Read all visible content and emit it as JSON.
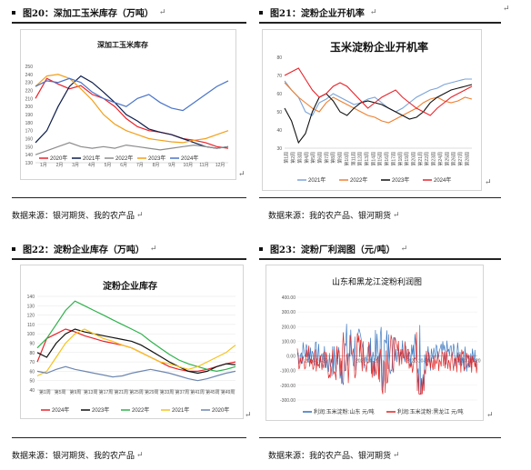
{
  "captions": {
    "fig20": "图20：深加工玉米库存（万吨）",
    "fig21": "图21：淀粉企业开机率",
    "fig22": "图22：淀粉企业库存（万吨）",
    "fig23": "图23：淀粉厂利润图（元/吨）"
  },
  "sources": {
    "left": "数据来源：银河期货、我的农产品",
    "right": "数据来源：我的农产品、银河期货"
  },
  "return_mark": "↵",
  "chart_data": [
    {
      "id": "fig20",
      "type": "line",
      "title": "深加工玉米库存",
      "ylabel_ticks": [
        "250",
        "240",
        "230",
        "220",
        "210",
        "200",
        "190",
        "180",
        "170",
        "160",
        "150",
        "140",
        "130"
      ],
      "series": [
        {
          "name": "2020年",
          "color": "#e8232a",
          "values": [
            210,
            235,
            228,
            222,
            226,
            215,
            210,
            200,
            185,
            175,
            170,
            168,
            165,
            160,
            158,
            155,
            150,
            148
          ]
        },
        {
          "name": "2021年",
          "color": "#0c1d4b",
          "values": [
            155,
            170,
            200,
            225,
            238,
            230,
            218,
            205,
            190,
            182,
            172,
            168,
            165,
            160,
            155,
            150,
            148,
            150
          ]
        },
        {
          "name": "2022年",
          "color": "#8c8c8c",
          "values": [
            140,
            145,
            150,
            155,
            150,
            148,
            150,
            148,
            152,
            150,
            148,
            146,
            148,
            150,
            152,
            150,
            148,
            150
          ]
        },
        {
          "name": "2023年",
          "color": "#f2a01a",
          "values": [
            225,
            238,
            240,
            235,
            222,
            208,
            190,
            178,
            170,
            165,
            160,
            158,
            156,
            155,
            158,
            160,
            165,
            170
          ]
        },
        {
          "name": "2024年",
          "color": "#4a74c9",
          "values": [
            225,
            232,
            230,
            235,
            230,
            218,
            210,
            205,
            200,
            210,
            215,
            205,
            198,
            195,
            205,
            215,
            225,
            232
          ]
        }
      ]
    },
    {
      "id": "fig21",
      "type": "line",
      "title": "玉米淀粉企业开机率",
      "ylim": [
        30,
        80
      ],
      "yticks": [
        "80",
        "70",
        "60",
        "50",
        "40",
        "30"
      ],
      "series": [
        {
          "name": "2021年",
          "color": "#7aa3d8",
          "values": [
            67,
            62,
            58,
            50,
            48,
            55,
            57,
            60,
            58,
            56,
            54,
            55,
            57,
            58,
            55,
            52,
            50,
            52,
            55,
            58,
            60,
            62,
            63,
            65,
            66,
            67,
            68,
            68
          ]
        },
        {
          "name": "2022年",
          "color": "#f07f2f",
          "values": [
            66,
            62,
            58,
            55,
            52,
            50,
            55,
            58,
            56,
            54,
            52,
            50,
            48,
            47,
            45,
            44,
            46,
            48,
            50,
            52,
            55,
            57,
            58,
            56,
            55,
            56,
            58,
            57
          ]
        },
        {
          "name": "2023年",
          "color": "#111111",
          "values": [
            52,
            45,
            33,
            38,
            50,
            58,
            60,
            56,
            50,
            48,
            52,
            55,
            56,
            55,
            54,
            52,
            50,
            48,
            46,
            47,
            50,
            55,
            58,
            60,
            62,
            63,
            64,
            65
          ]
        },
        {
          "name": "2024年",
          "color": "#e8232a",
          "values": [
            70,
            72,
            74,
            68,
            62,
            58,
            60,
            64,
            66,
            64,
            60,
            56,
            52,
            55,
            58,
            60,
            62,
            58,
            55,
            52,
            50,
            48,
            52,
            55,
            58,
            60,
            62,
            64
          ]
        }
      ]
    },
    {
      "id": "fig22",
      "type": "line",
      "title": "淀粉企业库存",
      "ylim": [
        40,
        140
      ],
      "yticks": [
        "140",
        "130",
        "120",
        "110",
        "100",
        "90",
        "80",
        "70",
        "60",
        "50",
        "40"
      ],
      "series": [
        {
          "name": "2024年",
          "color": "#e8232a",
          "values": [
            70,
            95,
            100,
            105,
            102,
            98,
            95,
            92,
            90,
            88,
            85,
            80,
            75,
            70,
            65,
            62,
            60,
            60,
            62,
            65,
            68,
            70
          ]
        },
        {
          "name": "2023年",
          "color": "#111111",
          "values": [
            80,
            75,
            90,
            100,
            105,
            102,
            100,
            98,
            96,
            94,
            92,
            88,
            82,
            76,
            70,
            65,
            60,
            58,
            60,
            65,
            68,
            67
          ]
        },
        {
          "name": "2022年",
          "color": "#2db24a",
          "values": [
            85,
            95,
            110,
            125,
            135,
            130,
            125,
            120,
            115,
            110,
            105,
            100,
            92,
            85,
            78,
            72,
            68,
            65,
            62,
            60,
            62,
            65
          ]
        },
        {
          "name": "2021年",
          "color": "#f7c21a",
          "values": [
            55,
            60,
            75,
            90,
            100,
            105,
            100,
            95,
            92,
            88,
            85,
            80,
            75,
            70,
            68,
            65,
            62,
            65,
            70,
            75,
            80,
            88
          ]
        },
        {
          "name": "2020年",
          "color": "#6e87b0",
          "values": [
            60,
            58,
            62,
            65,
            62,
            60,
            58,
            56,
            54,
            55,
            58,
            60,
            62,
            60,
            58,
            55,
            52,
            50,
            52,
            55,
            58,
            60
          ]
        }
      ]
    },
    {
      "id": "fig23",
      "type": "line",
      "title": "山东和黑龙江淀粉利润图",
      "ylim": [
        -300,
        400
      ],
      "yticks": [
        "400.00",
        "300.00",
        "200.00",
        "100.00",
        "0.00",
        "-100.00",
        "-200.00",
        "-300.00"
      ],
      "xticks": [
        "2020-10-20",
        "2021-10-20",
        "2022-10-20",
        "2023-10-20"
      ],
      "series": [
        {
          "name": "利润:玉米淀粉:山东 元/吨",
          "color": "#2e6fbd"
        },
        {
          "name": "利润:玉米淀粉:黑龙江 元/吨",
          "color": "#e02020"
        }
      ]
    }
  ]
}
